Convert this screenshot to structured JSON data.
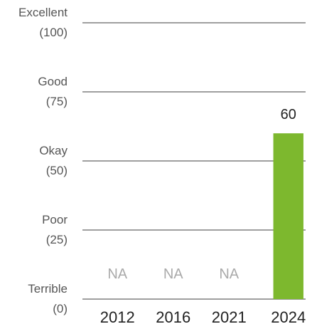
{
  "chart_data": {
    "type": "bar",
    "categories": [
      "2012",
      "2016",
      "2021",
      "2024"
    ],
    "values": [
      null,
      null,
      null,
      60
    ],
    "value_labels": [
      "NA",
      "NA",
      "NA",
      "60"
    ],
    "color": "#7db82e",
    "ylim": [
      0,
      100
    ],
    "yticks": [
      {
        "value": 0,
        "label": "Terrible\n(0)"
      },
      {
        "value": 25,
        "label": "Poor\n(25)"
      },
      {
        "value": 50,
        "label": "Okay\n(50)"
      },
      {
        "value": 75,
        "label": "Good\n(75)"
      },
      {
        "value": 100,
        "label": "Excellent\n(100)"
      }
    ],
    "grid": true
  }
}
